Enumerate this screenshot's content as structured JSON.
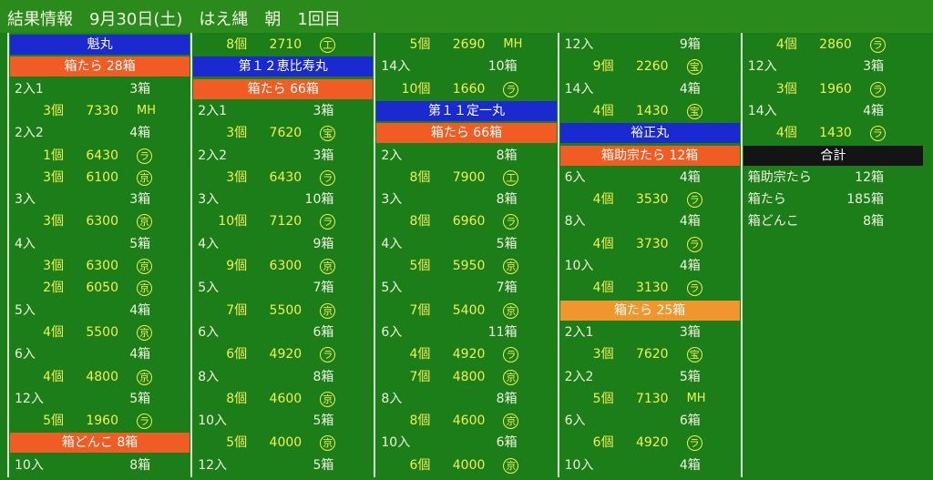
{
  "header": {
    "title": "結果情報　9月30日(土)　はえ縄　朝　1回目"
  },
  "columns": [
    [
      {
        "banner": "魁丸",
        "color": "#1a2ad0"
      },
      {
        "banner": "箱たら 28箱",
        "color": "#f05c24"
      },
      {
        "size": "2入1",
        "boxes": "3箱"
      },
      {
        "qty": "3個",
        "price": "7330",
        "buyer": "MH"
      },
      {
        "size": "2入2",
        "boxes": "4箱"
      },
      {
        "qty": "1個",
        "price": "6430",
        "buyer": "ラ"
      },
      {
        "qty": "3個",
        "price": "6100",
        "buyer": "京"
      },
      {
        "size": "3入",
        "boxes": "3箱"
      },
      {
        "qty": "3個",
        "price": "6300",
        "buyer": "京"
      },
      {
        "size": "4入",
        "boxes": "5箱"
      },
      {
        "qty": "3個",
        "price": "6300",
        "buyer": "京"
      },
      {
        "qty": "2個",
        "price": "6050",
        "buyer": "京"
      },
      {
        "size": "5入",
        "boxes": "4箱"
      },
      {
        "qty": "4個",
        "price": "5500",
        "buyer": "京"
      },
      {
        "size": "6入",
        "boxes": "4箱"
      },
      {
        "qty": "4個",
        "price": "4800",
        "buyer": "京"
      },
      {
        "size": "12入",
        "boxes": "5箱"
      },
      {
        "qty": "5個",
        "price": "1960",
        "buyer": "ラ"
      },
      {
        "banner": "箱どんこ 8箱",
        "color": "#f05c24"
      },
      {
        "size": "10入",
        "boxes": "8箱"
      }
    ],
    [
      {
        "qty": "8個",
        "price": "2710",
        "buyer": "工"
      },
      {
        "banner": "第１２恵比寿丸",
        "color": "#1a2ad0"
      },
      {
        "banner": "箱たら 66箱",
        "color": "#f05c24"
      },
      {
        "size": "2入1",
        "boxes": "3箱"
      },
      {
        "qty": "3個",
        "price": "7620",
        "buyer": "宝"
      },
      {
        "size": "2入2",
        "boxes": "3箱"
      },
      {
        "qty": "3個",
        "price": "6430",
        "buyer": "ラ"
      },
      {
        "size": "3入",
        "boxes": "10箱"
      },
      {
        "qty": "10個",
        "price": "7120",
        "buyer": "ラ"
      },
      {
        "size": "4入",
        "boxes": "9箱"
      },
      {
        "qty": "9個",
        "price": "6300",
        "buyer": "京"
      },
      {
        "size": "5入",
        "boxes": "7箱"
      },
      {
        "qty": "7個",
        "price": "5500",
        "buyer": "京"
      },
      {
        "size": "6入",
        "boxes": "6箱"
      },
      {
        "qty": "6個",
        "price": "4920",
        "buyer": "ラ"
      },
      {
        "size": "8入",
        "boxes": "8箱"
      },
      {
        "qty": "8個",
        "price": "4600",
        "buyer": "京"
      },
      {
        "size": "10入",
        "boxes": "5箱"
      },
      {
        "qty": "5個",
        "price": "4000",
        "buyer": "京"
      },
      {
        "size": "12入",
        "boxes": "5箱"
      }
    ],
    [
      {
        "qty": "5個",
        "price": "2690",
        "buyer": "MH"
      },
      {
        "size": "14入",
        "boxes": "10箱"
      },
      {
        "qty": "10個",
        "price": "1660",
        "buyer": "ラ"
      },
      {
        "banner": "第１１定一丸",
        "color": "#1a2ad0"
      },
      {
        "banner": "箱たら 66箱",
        "color": "#f05c24"
      },
      {
        "size": "2入",
        "boxes": "8箱"
      },
      {
        "qty": "8個",
        "price": "7900",
        "buyer": "工"
      },
      {
        "size": "3入",
        "boxes": "8箱"
      },
      {
        "qty": "8個",
        "price": "6960",
        "buyer": "ラ"
      },
      {
        "size": "4入",
        "boxes": "5箱"
      },
      {
        "qty": "5個",
        "price": "5950",
        "buyer": "京"
      },
      {
        "size": "5入",
        "boxes": "7箱"
      },
      {
        "qty": "7個",
        "price": "5400",
        "buyer": "京"
      },
      {
        "size": "6入",
        "boxes": "11箱"
      },
      {
        "qty": "4個",
        "price": "4920",
        "buyer": "ラ"
      },
      {
        "qty": "7個",
        "price": "4800",
        "buyer": "京"
      },
      {
        "size": "8入",
        "boxes": "8箱"
      },
      {
        "qty": "8個",
        "price": "4600",
        "buyer": "京"
      },
      {
        "size": "10入",
        "boxes": "6箱"
      },
      {
        "qty": "6個",
        "price": "4000",
        "buyer": "京"
      }
    ],
    [
      {
        "size": "12入",
        "boxes": "9箱"
      },
      {
        "qty": "9個",
        "price": "2260",
        "buyer": "宝"
      },
      {
        "size": "14入",
        "boxes": "4箱"
      },
      {
        "qty": "4個",
        "price": "1430",
        "buyer": "宝"
      },
      {
        "banner": "裕正丸",
        "color": "#1a2ad0"
      },
      {
        "banner": "箱助宗たら 12箱",
        "color": "#f05c24"
      },
      {
        "size": "6入",
        "boxes": "4箱"
      },
      {
        "qty": "4個",
        "price": "3530",
        "buyer": "ラ"
      },
      {
        "size": "8入",
        "boxes": "4箱"
      },
      {
        "qty": "4個",
        "price": "3730",
        "buyer": "ラ"
      },
      {
        "size": "10入",
        "boxes": "4箱"
      },
      {
        "qty": "4個",
        "price": "3130",
        "buyer": "ラ"
      },
      {
        "banner": "箱たら 25箱",
        "color": "#f0962c"
      },
      {
        "size": "2入1",
        "boxes": "3箱"
      },
      {
        "qty": "3個",
        "price": "7620",
        "buyer": "宝"
      },
      {
        "size": "2入2",
        "boxes": "5箱"
      },
      {
        "qty": "5個",
        "price": "7130",
        "buyer": "MH"
      },
      {
        "size": "6入",
        "boxes": "6箱"
      },
      {
        "qty": "6個",
        "price": "4920",
        "buyer": "ラ"
      },
      {
        "size": "10入",
        "boxes": "4箱"
      }
    ],
    [
      {
        "qty": "4個",
        "price": "2860",
        "buyer": "ラ"
      },
      {
        "size": "12入",
        "boxes": "3箱"
      },
      {
        "qty": "3個",
        "price": "1960",
        "buyer": "ラ"
      },
      {
        "size": "14入",
        "boxes": "4箱"
      },
      {
        "qty": "4個",
        "price": "1430",
        "buyer": "ラ"
      },
      {
        "banner": "合計",
        "color": "#141414"
      },
      {
        "size": "箱助宗たら",
        "boxes": "12箱"
      },
      {
        "size": "箱たら",
        "boxes": "185箱"
      },
      {
        "size": "箱どんこ",
        "boxes": "8箱"
      }
    ]
  ]
}
